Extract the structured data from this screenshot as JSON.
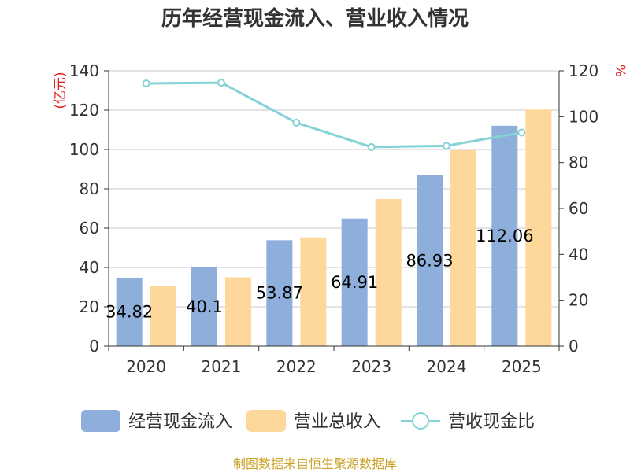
{
  "chart_data": {
    "type": "bar",
    "title": "历年经营现金流入、营业收入情况",
    "categories": [
      "2020",
      "2021",
      "2022",
      "2023",
      "2024",
      "2025"
    ],
    "series": [
      {
        "name": "经营现金流入",
        "type": "bar",
        "axis": "left",
        "color": "#8eaedb",
        "values": [
          34.82,
          40.1,
          53.87,
          64.91,
          86.93,
          112.06
        ],
        "labels": [
          "34.82",
          "40.1",
          "53.87",
          "64.91",
          "86.93",
          "112.06"
        ]
      },
      {
        "name": "营业总收入",
        "type": "bar",
        "axis": "left",
        "color": "#fdd89a",
        "values": [
          30.4,
          35.0,
          55.3,
          74.8,
          99.6,
          120.3
        ]
      },
      {
        "name": "营收现金比",
        "type": "line",
        "axis": "right",
        "color": "#85d3d6",
        "values": [
          114.5,
          114.8,
          97.4,
          86.8,
          87.3,
          93.1
        ]
      }
    ],
    "left_axis": {
      "unit": "(亿元)",
      "ylim": [
        0,
        140
      ],
      "ticks": [
        0,
        20,
        40,
        60,
        80,
        100,
        120,
        140
      ]
    },
    "right_axis": {
      "unit": "%",
      "ylim": [
        0,
        120
      ],
      "ticks": [
        0,
        20,
        40,
        60,
        80,
        100,
        120
      ]
    },
    "grid": true,
    "legend_position": "bottom"
  },
  "source": "制图数据来自恒生聚源数据库"
}
